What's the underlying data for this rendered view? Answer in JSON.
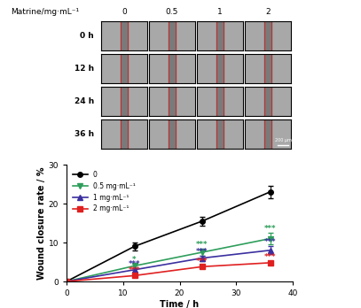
{
  "image_panel": {
    "title": "Matrine/mg·mL⁻¹",
    "columns": [
      "0",
      "0.5",
      "1",
      "2"
    ],
    "rows": [
      "0 h",
      "12 h",
      "24 h",
      "36 h"
    ],
    "scale_bar": "200 μm"
  },
  "chart_data": {
    "type": "line",
    "x_label": "Time / h",
    "y_label": "Wound closure rate / %",
    "x": [
      0,
      12,
      24,
      36
    ],
    "xlim": [
      0,
      40
    ],
    "xticks": [
      0,
      10,
      20,
      30,
      40
    ],
    "ylim": [
      0,
      30
    ],
    "yticks": [
      0,
      10,
      20,
      30
    ],
    "legend": "upper left",
    "series": [
      {
        "name": "0",
        "color": "#000000",
        "marker": "o",
        "values": [
          0,
          9,
          15.5,
          23
        ],
        "error": [
          0,
          1,
          1.2,
          1.6
        ],
        "significance": [
          null,
          null,
          null,
          null
        ]
      },
      {
        "name": "0.5 mg·mL⁻¹",
        "color": "#2e9e5b",
        "marker": "v",
        "values": [
          0,
          4,
          7.5,
          11
        ],
        "error": [
          0,
          0.6,
          0.8,
          1.5
        ],
        "significance": [
          null,
          "*",
          "***",
          "***"
        ]
      },
      {
        "name": "1 mg·mL⁻¹",
        "color": "#3b2fa0",
        "marker": "^",
        "values": [
          0,
          3,
          6,
          8
        ],
        "error": [
          0,
          0.5,
          0.7,
          1.0
        ],
        "significance": [
          null,
          "***",
          "***",
          "***"
        ]
      },
      {
        "name": "2 mg·mL⁻¹",
        "color": "#e02020",
        "marker": "s",
        "values": [
          0,
          1.5,
          3.8,
          4.8
        ],
        "error": [
          0,
          0.3,
          0.4,
          0.5
        ],
        "significance": [
          null,
          "***",
          "***",
          "***"
        ]
      }
    ]
  }
}
